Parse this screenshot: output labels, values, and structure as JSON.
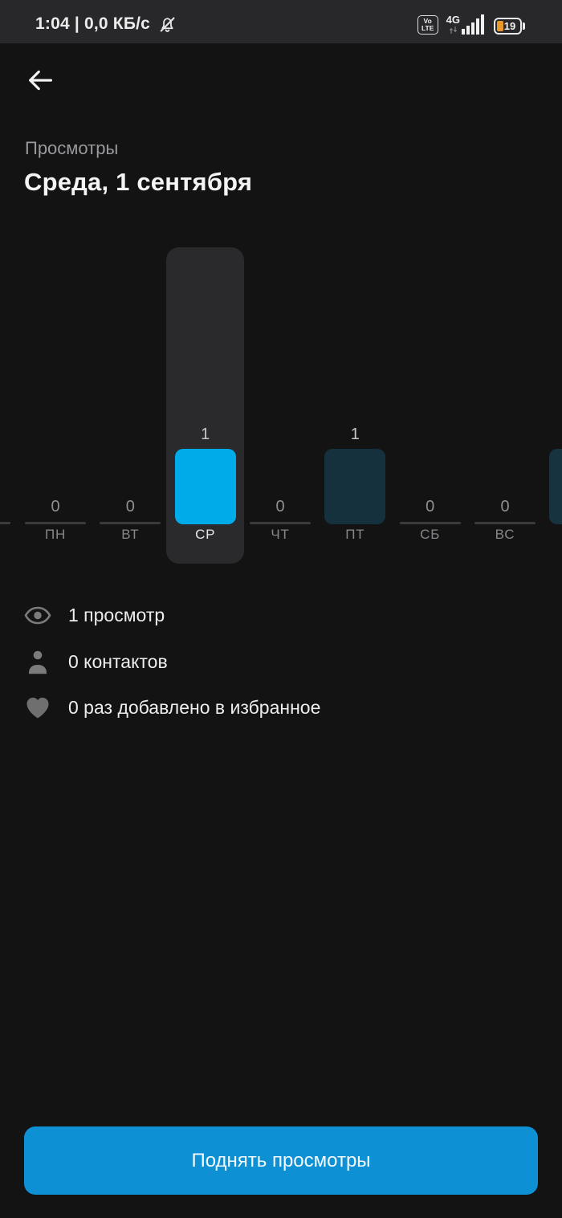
{
  "status_bar": {
    "time_and_network": "1:04 | 0,0 КБ/с",
    "volte_top": "Vo",
    "volte_bottom": "LTE",
    "network_type": "4G",
    "battery_level": "19"
  },
  "header": {
    "subtitle": "Просмотры",
    "title": "Среда, 1 сентября"
  },
  "chart_data": {
    "type": "bar",
    "categories": [
      "ПН",
      "ВТ",
      "СР",
      "ЧТ",
      "ПТ",
      "СБ",
      "ВС"
    ],
    "values": [
      0,
      0,
      1,
      0,
      1,
      0,
      0
    ],
    "selected_index": 2,
    "selected_category": "СР",
    "ylim": [
      0,
      1
    ],
    "grid": false,
    "legend": false,
    "colors": {
      "selected_bar": "#00ABEA",
      "unselected_bar": "#15313E",
      "zero_baseline": "#3B3B3D",
      "selected_column_bg": "#2A2A2C",
      "value_nonzero": "#C6C8CA",
      "value_zero": "#8F9093",
      "label": "#85878A",
      "label_selected": "#E6E7E9"
    },
    "edge_partials": {
      "prev_day_zero_baseline_visible": true,
      "next_day_bar_visible": true,
      "next_day_bar_color": "#16333F"
    }
  },
  "stats": [
    {
      "icon": "eye-icon",
      "label": "1 просмотр"
    },
    {
      "icon": "person-icon",
      "label": "0 контактов"
    },
    {
      "icon": "heart-icon",
      "label": "0 раз добавлено в избранное"
    }
  ],
  "footer": {
    "boost_button_label": "Поднять просмотры",
    "boost_button_color": "#0E90D4"
  }
}
